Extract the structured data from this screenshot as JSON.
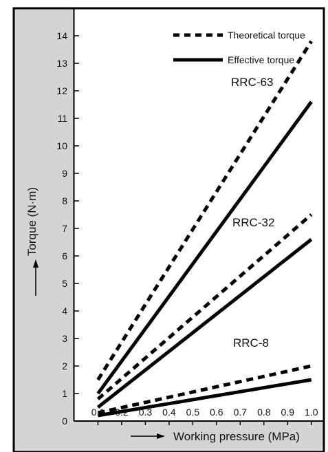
{
  "chart_data": {
    "type": "line",
    "title": "",
    "xlabel": "Working pressure (MPa)",
    "ylabel": "Torque (N·m)",
    "xlim": [
      0,
      1.05
    ],
    "ylim": [
      0,
      15
    ],
    "x_ticks": [
      "0.1",
      "0.2",
      "0.3",
      "0.4",
      "0.5",
      "0.6",
      "0.7",
      "0.8",
      "0.9",
      "1.0"
    ],
    "y_ticks": [
      "0",
      "1",
      "2",
      "3",
      "4",
      "5",
      "6",
      "7",
      "8",
      "9",
      "10",
      "11",
      "12",
      "13",
      "14"
    ],
    "legend": {
      "position": "top-right",
      "items": [
        {
          "label": "Theoretical torque",
          "style": "dashed"
        },
        {
          "label": "Effective torque",
          "style": "solid"
        }
      ]
    },
    "series": [
      {
        "model": "RRC-63",
        "style": "dashed",
        "x": [
          0.1,
          1.0
        ],
        "y": [
          1.5,
          13.8
        ]
      },
      {
        "model": "RRC-63",
        "style": "solid",
        "x": [
          0.1,
          1.0
        ],
        "y": [
          1.0,
          11.6
        ]
      },
      {
        "model": "RRC-32",
        "style": "dashed",
        "x": [
          0.1,
          1.0
        ],
        "y": [
          0.8,
          7.5
        ]
      },
      {
        "model": "RRC-32",
        "style": "solid",
        "x": [
          0.1,
          1.0
        ],
        "y": [
          0.5,
          6.6
        ]
      },
      {
        "model": "RRC-8",
        "style": "dashed",
        "x": [
          0.1,
          1.0
        ],
        "y": [
          0.3,
          2.0
        ]
      },
      {
        "model": "RRC-8",
        "style": "solid",
        "x": [
          0.1,
          1.0
        ],
        "y": [
          0.2,
          1.5
        ]
      }
    ],
    "annotations": [
      "RRC-63",
      "RRC-32",
      "RRC-8"
    ],
    "colors": {
      "line": "#000000",
      "side_panel": "#d4d4d4"
    }
  }
}
